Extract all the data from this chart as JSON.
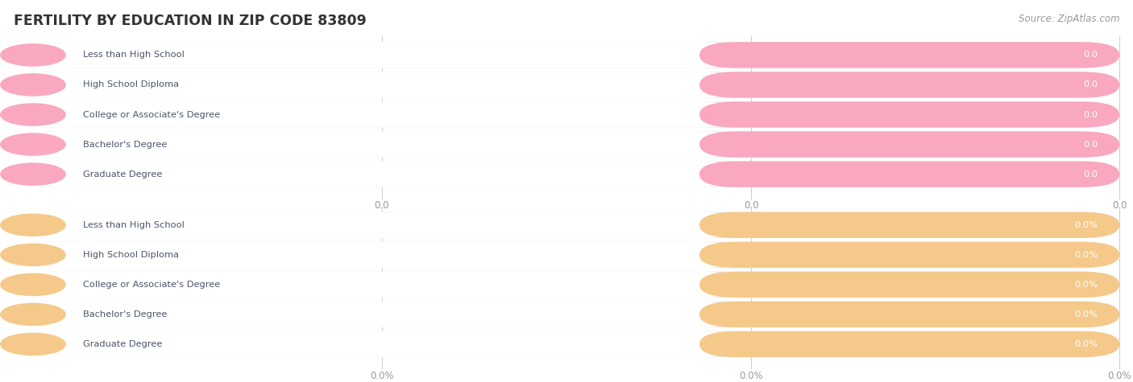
{
  "title": "FERTILITY BY EDUCATION IN ZIP CODE 83809",
  "source_text": "Source: ZipAtlas.com",
  "categories": [
    "Less than High School",
    "High School Diploma",
    "College or Associate's Degree",
    "Bachelor's Degree",
    "Graduate Degree"
  ],
  "values_top": [
    0.0,
    0.0,
    0.0,
    0.0,
    0.0
  ],
  "values_bottom": [
    0.0,
    0.0,
    0.0,
    0.0,
    0.0
  ],
  "top_bar_color": "#f9a8c0",
  "bottom_bar_color": "#f5c98a",
  "top_label_color": "#4a5568",
  "bottom_label_color": "#4a5568",
  "top_value_color": "#ffffff",
  "bottom_value_color": "#ffffff",
  "title_color": "#333333",
  "source_color": "#999999",
  "background_color": "#ffffff",
  "bar_bg_color": "#e8e8e8",
  "white_pill_color": "#ffffff",
  "grid_color": "#d0d0d0",
  "tick_label_color": "#999999",
  "top_value_fmt": "0.0",
  "bottom_value_fmt": "0.0%"
}
